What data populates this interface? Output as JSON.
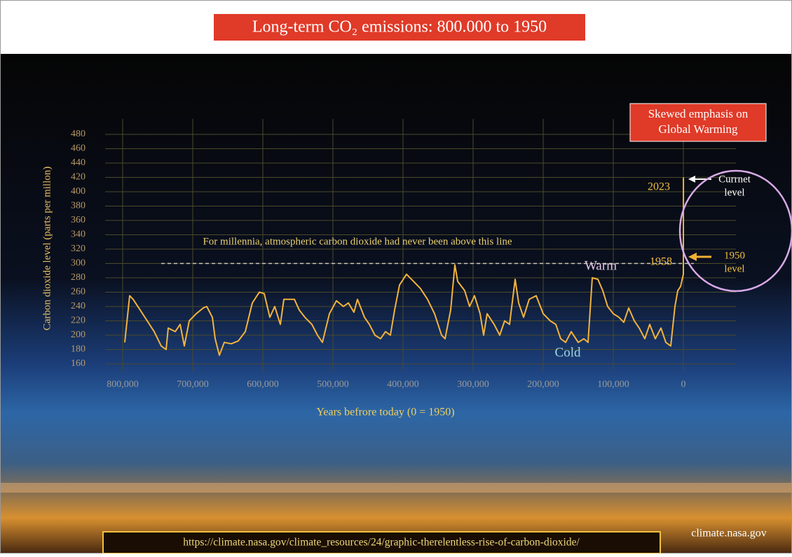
{
  "chart_data": {
    "type": "line",
    "title": "Long-term CO₂ emissions: 800.000 to 1950",
    "y_label": "Carbon dioxide level (parts per millon)",
    "x_label": "Years befrore today (0 = 1950)",
    "x": [
      797000,
      790000,
      785000,
      775000,
      765000,
      755000,
      745000,
      738000,
      735000,
      725000,
      718000,
      712000,
      705000,
      695000,
      685000,
      680000,
      672000,
      668000,
      662000,
      655000,
      645000,
      635000,
      625000,
      615000,
      605000,
      598000,
      590000,
      583000,
      575000,
      570000,
      555000,
      548000,
      540000,
      530000,
      522000,
      515000,
      505000,
      495000,
      485000,
      478000,
      470000,
      465000,
      455000,
      448000,
      440000,
      432000,
      425000,
      418000,
      412000,
      405000,
      395000,
      385000,
      375000,
      365000,
      355000,
      345000,
      340000,
      332000,
      326000,
      322000,
      312000,
      305000,
      298000,
      290000,
      285000,
      280000,
      270000,
      262000,
      255000,
      248000,
      240000,
      235000,
      228000,
      220000,
      210000,
      200000,
      190000,
      182000,
      175000,
      168000,
      160000,
      150000,
      142000,
      136000,
      130000,
      122000,
      115000,
      108000,
      100000,
      92000,
      85000,
      78000,
      70000,
      63000,
      55000,
      48000,
      40000,
      32000,
      25000,
      18000,
      12000,
      8000,
      4000,
      0,
      -8,
      -73
    ],
    "series": [
      {
        "color": "#f2b33d",
        "values": [
          190,
          255,
          250,
          235,
          220,
          205,
          185,
          180,
          210,
          205,
          215,
          185,
          220,
          230,
          238,
          240,
          225,
          195,
          172,
          190,
          188,
          192,
          205,
          245,
          260,
          258,
          225,
          240,
          215,
          250,
          250,
          235,
          225,
          215,
          200,
          190,
          230,
          248,
          240,
          245,
          232,
          250,
          225,
          215,
          200,
          195,
          205,
          200,
          235,
          270,
          285,
          275,
          265,
          250,
          230,
          200,
          195,
          235,
          298,
          275,
          262,
          240,
          255,
          230,
          200,
          230,
          215,
          200,
          220,
          215,
          278,
          245,
          225,
          250,
          255,
          230,
          220,
          215,
          195,
          190,
          205,
          190,
          195,
          190,
          280,
          278,
          262,
          240,
          230,
          225,
          218,
          238,
          220,
          210,
          195,
          215,
          195,
          210,
          190,
          185,
          240,
          262,
          268,
          285,
          303,
          420
        ]
      }
    ],
    "xlim": [
      825000,
      -75000
    ],
    "xticks": [
      {
        "value": 800000,
        "label": "800,000"
      },
      {
        "value": 700000,
        "label": "700,000"
      },
      {
        "value": 600000,
        "label": "600,000"
      },
      {
        "value": 500000,
        "label": "500,000"
      },
      {
        "value": 400000,
        "label": "400,000"
      },
      {
        "value": 300000,
        "label": "300,000"
      },
      {
        "value": 200000,
        "label": "200,000"
      },
      {
        "value": 100000,
        "label": "100,000"
      },
      0
    ],
    "ylim": [
      160,
      480
    ],
    "yticks": [
      160,
      180,
      200,
      220,
      240,
      260,
      280,
      300,
      320,
      340,
      360,
      380,
      400,
      420,
      440,
      460,
      480
    ],
    "grid": true,
    "reference_line": {
      "value": 300,
      "label": "For millennia, atmospheric carbon dioxide had never been above this line"
    },
    "annotations": [
      "Warm",
      "Cold",
      "Skewed emphasis on",
      "Global Warming",
      "2023",
      "Currnet",
      "level",
      "1958",
      "1950",
      "level"
    ],
    "source_url": "https://climate.nasa.gov/climate_resources/24/graphic-therelentless-rise-of-carbon-dioxide/",
    "source": "climate.nasa.gov"
  }
}
